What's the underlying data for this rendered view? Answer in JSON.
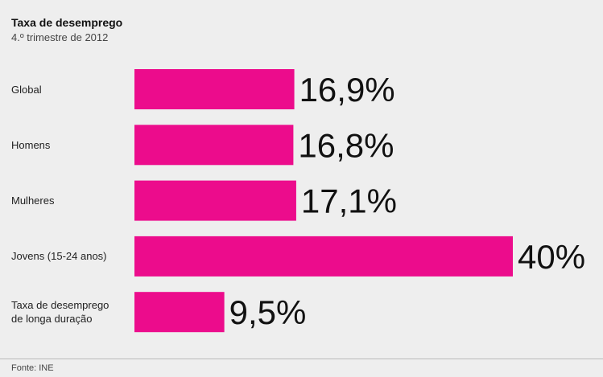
{
  "chart_data": {
    "type": "bar",
    "orientation": "horizontal",
    "title": "Taxa de desemprego",
    "subtitle": "4.º trimestre de 2012",
    "categories": [
      "Global",
      "Homens",
      "Mulheres",
      "Jovens (15-24 anos)",
      "Taxa de desemprego de longa duração"
    ],
    "values": [
      16.9,
      16.8,
      17.1,
      40,
      9.5
    ],
    "value_labels": [
      "16,9%",
      "16,8%",
      "17,1%",
      "40%",
      "9,5%"
    ],
    "color": "#ec0c8c",
    "source": "Fonte: INE"
  }
}
